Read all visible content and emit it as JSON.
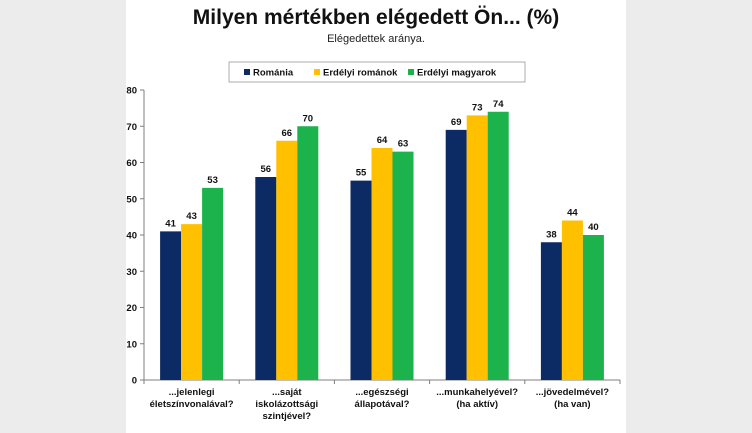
{
  "chart_data": {
    "type": "bar",
    "title": "Milyen mértékben elégedett Ön... (%)",
    "subtitle": "Elégedettek aránya.",
    "categories": [
      [
        "...jelenlegi",
        "életszínvonalával?"
      ],
      [
        "...saját",
        "iskolázottsági",
        "szintjével?"
      ],
      [
        "...egészségi",
        "állapotával?"
      ],
      [
        "...munkahelyével?",
        "(ha aktív)"
      ],
      [
        "...jövedelmével?",
        "(ha van)"
      ]
    ],
    "series": [
      {
        "name": "Románia",
        "values": [
          41,
          56,
          55,
          69,
          38
        ],
        "color": "#0c2a63"
      },
      {
        "name": "Erdélyi románok",
        "values": [
          43,
          66,
          64,
          73,
          44
        ],
        "color": "#ffc000"
      },
      {
        "name": "Erdélyi magyarok",
        "values": [
          53,
          70,
          63,
          74,
          40
        ],
        "color": "#1cb24c"
      }
    ],
    "value_labels": [
      [
        "41",
        "56",
        "55",
        "69",
        "38"
      ],
      [
        "43",
        "66",
        "64",
        "73",
        "44"
      ],
      [
        "53",
        "70",
        "63",
        "74",
        "40"
      ]
    ],
    "ylim": [
      0,
      80
    ],
    "yticks": [
      "0",
      "10",
      "20",
      "30",
      "40",
      "50",
      "60",
      "70",
      "80"
    ],
    "legend_position": "top",
    "grid": false
  }
}
